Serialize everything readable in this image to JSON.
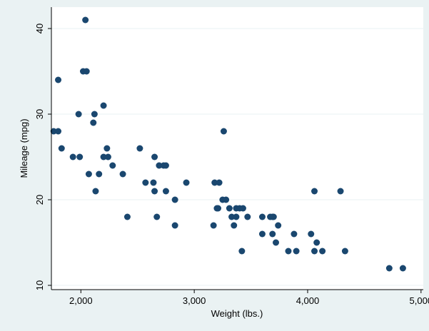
{
  "colors": {
    "outer_background": "#eaf2f3",
    "plot_background": "#ffffff",
    "marker": "#1a476f",
    "gridline": "#eaf2f3",
    "axis": "#000000"
  },
  "chart_data": {
    "type": "scatter",
    "xlabel": "Weight (lbs.)",
    "ylabel": "Mileage (mpg)",
    "xlim": [
      1740,
      5020
    ],
    "ylim": [
      9.5,
      42.5
    ],
    "xticks": [
      2000,
      3000,
      4000,
      5000
    ],
    "xtick_labels": [
      "2,000",
      "3,000",
      "4,000",
      "5,000"
    ],
    "yticks": [
      10,
      20,
      30,
      40
    ],
    "ytick_labels": [
      "10",
      "20",
      "30",
      "40"
    ],
    "grid": "horizontal",
    "legend": "none",
    "points": [
      [
        1760,
        28
      ],
      [
        1800,
        34
      ],
      [
        1800,
        28
      ],
      [
        1830,
        26
      ],
      [
        1930,
        25
      ],
      [
        1980,
        30
      ],
      [
        1990,
        25
      ],
      [
        2020,
        35
      ],
      [
        2040,
        41
      ],
      [
        2050,
        35
      ],
      [
        2070,
        23
      ],
      [
        2110,
        29
      ],
      [
        2120,
        30
      ],
      [
        2130,
        21
      ],
      [
        2160,
        23
      ],
      [
        2200,
        31
      ],
      [
        2200,
        25
      ],
      [
        2230,
        26
      ],
      [
        2240,
        25
      ],
      [
        2280,
        24
      ],
      [
        2370,
        23
      ],
      [
        2410,
        18
      ],
      [
        2520,
        26
      ],
      [
        2570,
        22
      ],
      [
        2640,
        22
      ],
      [
        2650,
        25
      ],
      [
        2650,
        21
      ],
      [
        2670,
        18
      ],
      [
        2690,
        24
      ],
      [
        2730,
        24
      ],
      [
        2750,
        24
      ],
      [
        2750,
        21
      ],
      [
        2830,
        20
      ],
      [
        2830,
        17
      ],
      [
        2930,
        22
      ],
      [
        3170,
        17
      ],
      [
        3180,
        22
      ],
      [
        3200,
        19
      ],
      [
        3210,
        19
      ],
      [
        3220,
        22
      ],
      [
        3250,
        20
      ],
      [
        3260,
        28
      ],
      [
        3280,
        20
      ],
      [
        3310,
        19
      ],
      [
        3330,
        18
      ],
      [
        3350,
        17
      ],
      [
        3370,
        18
      ],
      [
        3370,
        19
      ],
      [
        3400,
        19
      ],
      [
        3420,
        14
      ],
      [
        3430,
        19
      ],
      [
        3470,
        18
      ],
      [
        3600,
        18
      ],
      [
        3600,
        16
      ],
      [
        3670,
        18
      ],
      [
        3690,
        16
      ],
      [
        3690,
        18
      ],
      [
        3700,
        18
      ],
      [
        3720,
        15
      ],
      [
        3740,
        17
      ],
      [
        3830,
        14
      ],
      [
        3880,
        16
      ],
      [
        3900,
        14
      ],
      [
        4030,
        16
      ],
      [
        4060,
        14
      ],
      [
        4060,
        21
      ],
      [
        4080,
        15
      ],
      [
        4130,
        14
      ],
      [
        4290,
        21
      ],
      [
        4330,
        14
      ],
      [
        4720,
        12
      ],
      [
        4840,
        12
      ]
    ]
  }
}
